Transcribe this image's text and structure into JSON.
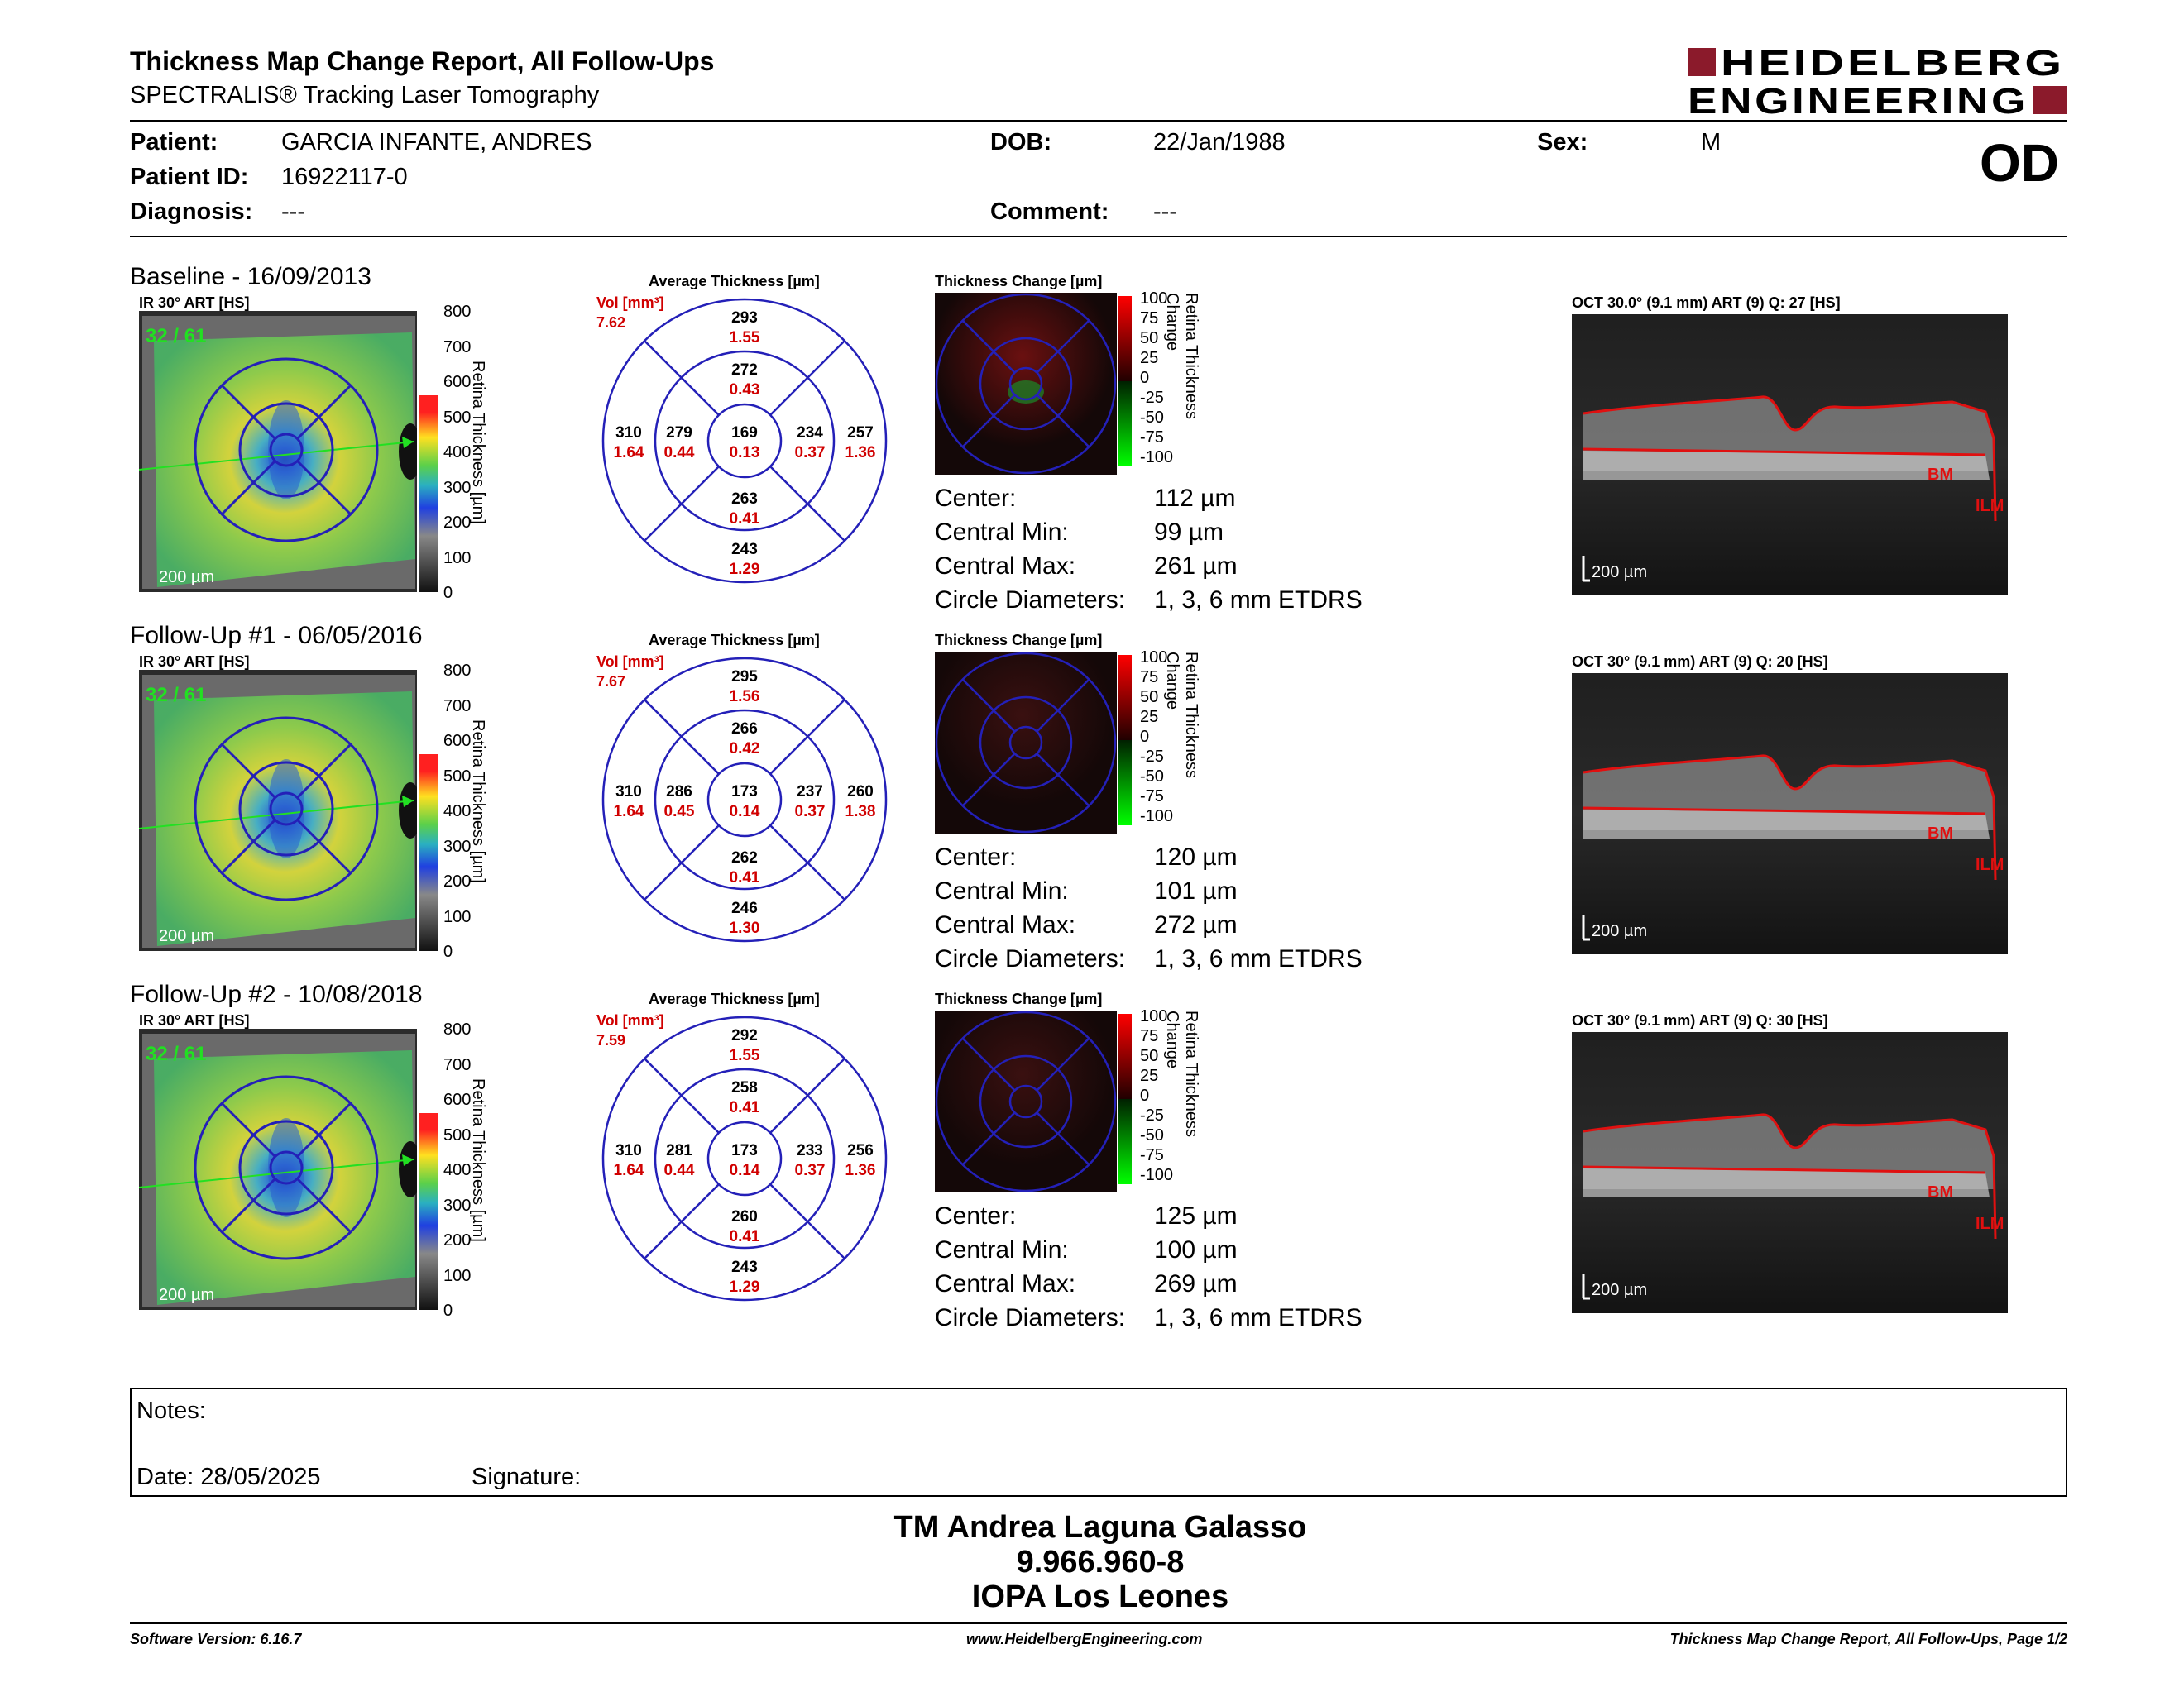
{
  "header": {
    "title": "Thickness Map Change Report, All Follow-Ups",
    "subtitle": "SPECTRALIS® Tracking Laser Tomography",
    "logo_line1": "HEIDELBERG",
    "logo_line2": "ENGINEERING",
    "brand_color": "#8b1a2b"
  },
  "patient": {
    "patient_label": "Patient:",
    "patient_value": "GARCIA INFANTE, ANDRES",
    "id_label": "Patient ID:",
    "id_value": "16922117-0",
    "diagnosis_label": "Diagnosis:",
    "diagnosis_value": "---",
    "dob_label": "DOB:",
    "dob_value": "22/Jan/1988",
    "comment_label": "Comment:",
    "comment_value": "---",
    "sex_label": "Sex:",
    "sex_value": "M",
    "eye": "OD"
  },
  "labels": {
    "avg_thickness": "Average Thickness [µm]",
    "thickness_change": "Thickness Change [µm]",
    "vol": "Vol [mm³]",
    "ir": "IR 30° ART [HS]",
    "scale_200": "200 µm",
    "retina_thickness_axis": "Retina Thickness [µm]",
    "retina_change_axis": "Retina Thickness Change",
    "bm": "BM",
    "ilm": "ILM",
    "center": "Center:",
    "central_min": "Central Min:",
    "central_max": "Central Max:",
    "circle_diameters": "Circle Diameters:",
    "circle_value": "1, 3, 6 mm ETDRS",
    "thickness_ticks": [
      "800",
      "700",
      "600",
      "500",
      "400",
      "300",
      "200",
      "100",
      "0"
    ],
    "change_ticks": [
      "100",
      "75",
      "50",
      "25",
      "0",
      "-25",
      "-50",
      "-75",
      "-100"
    ]
  },
  "exams": [
    {
      "title": "Baseline - 16/09/2013",
      "quality": "32 / 61",
      "vol_total": "7.62",
      "oct_label": "OCT 30.0° (9.1 mm) ART (9) Q: 27 [HS]",
      "grid": {
        "center": [
          "169",
          "0.13"
        ],
        "inner_top": [
          "272",
          "0.43"
        ],
        "inner_bottom": [
          "263",
          "0.41"
        ],
        "inner_left": [
          "279",
          "0.44"
        ],
        "inner_right": [
          "234",
          "0.37"
        ],
        "outer_top": [
          "293",
          "1.55"
        ],
        "outer_bottom": [
          "243",
          "1.29"
        ],
        "outer_left": [
          "310",
          "1.64"
        ],
        "outer_right": [
          "257",
          "1.36"
        ]
      },
      "center": "112 µm",
      "central_min": "99 µm",
      "central_max": "261 µm"
    },
    {
      "title": "Follow-Up #1 - 06/05/2016",
      "quality": "32 / 61",
      "vol_total": "7.67",
      "oct_label": "OCT 30° (9.1 mm) ART (9) Q: 20 [HS]",
      "grid": {
        "center": [
          "173",
          "0.14"
        ],
        "inner_top": [
          "266",
          "0.42"
        ],
        "inner_bottom": [
          "262",
          "0.41"
        ],
        "inner_left": [
          "286",
          "0.45"
        ],
        "inner_right": [
          "237",
          "0.37"
        ],
        "outer_top": [
          "295",
          "1.56"
        ],
        "outer_bottom": [
          "246",
          "1.30"
        ],
        "outer_left": [
          "310",
          "1.64"
        ],
        "outer_right": [
          "260",
          "1.38"
        ]
      },
      "center": "120 µm",
      "central_min": "101 µm",
      "central_max": "272 µm"
    },
    {
      "title": "Follow-Up #2 - 10/08/2018",
      "quality": "32 / 61",
      "vol_total": "7.59",
      "oct_label": "OCT 30° (9.1 mm) ART (9) Q: 30 [HS]",
      "grid": {
        "center": [
          "173",
          "0.14"
        ],
        "inner_top": [
          "258",
          "0.41"
        ],
        "inner_bottom": [
          "260",
          "0.41"
        ],
        "inner_left": [
          "281",
          "0.44"
        ],
        "inner_right": [
          "233",
          "0.37"
        ],
        "outer_top": [
          "292",
          "1.55"
        ],
        "outer_bottom": [
          "243",
          "1.29"
        ],
        "outer_left": [
          "310",
          "1.64"
        ],
        "outer_right": [
          "256",
          "1.36"
        ]
      },
      "center": "125 µm",
      "central_min": "100 µm",
      "central_max": "269 µm"
    }
  ],
  "notes": {
    "notes_label": "Notes:",
    "date_label": "Date: 28/05/2025",
    "signature_label": "Signature:"
  },
  "signatory": {
    "name": "TM Andrea Laguna Galasso",
    "id": "9.966.960-8",
    "org": "IOPA Los Leones"
  },
  "footer": {
    "software": "Software Version: 6.16.7",
    "website": "www.HeidelbergEngineering.com",
    "page": "Thickness Map Change Report, All Follow-Ups, Page 1/2"
  }
}
